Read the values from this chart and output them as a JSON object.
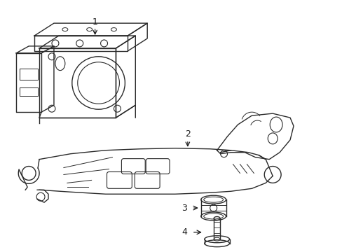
{
  "background_color": "#ffffff",
  "line_color": "#2a2a2a",
  "line_width": 1.0,
  "figsize": [
    4.89,
    3.6
  ],
  "dpi": 100,
  "label_fontsize": 9,
  "label_color": "#1a1a1a"
}
